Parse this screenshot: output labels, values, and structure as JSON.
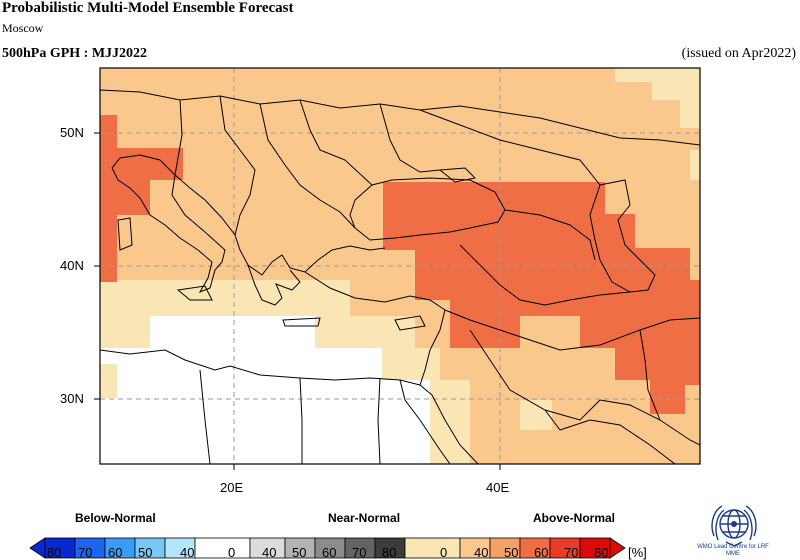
{
  "header": {
    "title": "Probabilistic Multi-Model Ensemble Forecast",
    "subtitle": "Moscow",
    "variable": "500hPa GPH : MJJ2022",
    "issued": "(issued on Apr2022)"
  },
  "map": {
    "lat_labels": [
      "50N",
      "40N",
      "30N"
    ],
    "lon_labels": [
      "20E",
      "40E"
    ]
  },
  "legend": {
    "categories": [
      "Below-Normal",
      "Near-Normal",
      "Above-Normal"
    ],
    "ticks": [
      "80",
      "70",
      "60",
      "50",
      "40",
      "0",
      "40",
      "50",
      "60",
      "70",
      "80",
      "0",
      "40",
      "50",
      "60",
      "70",
      "80"
    ],
    "unit": "[%]",
    "colors": {
      "below": [
        "#0a28d2",
        "#1e64f0",
        "#3c9bf5",
        "#78c8f5",
        "#b4e6fa"
      ],
      "near": [
        "#ffffff",
        "#dcdcdc",
        "#b4b4b4",
        "#8c8c8c",
        "#646464",
        "#3c3c3c"
      ],
      "above": [
        "#fae6b4",
        "#fac88c",
        "#f5a064",
        "#f06e46",
        "#e63c28",
        "#dc0a0a"
      ]
    }
  },
  "logo": {
    "icon": "wmo-globe-icon",
    "text": "WMO Lead Centre for LRF MME"
  }
}
